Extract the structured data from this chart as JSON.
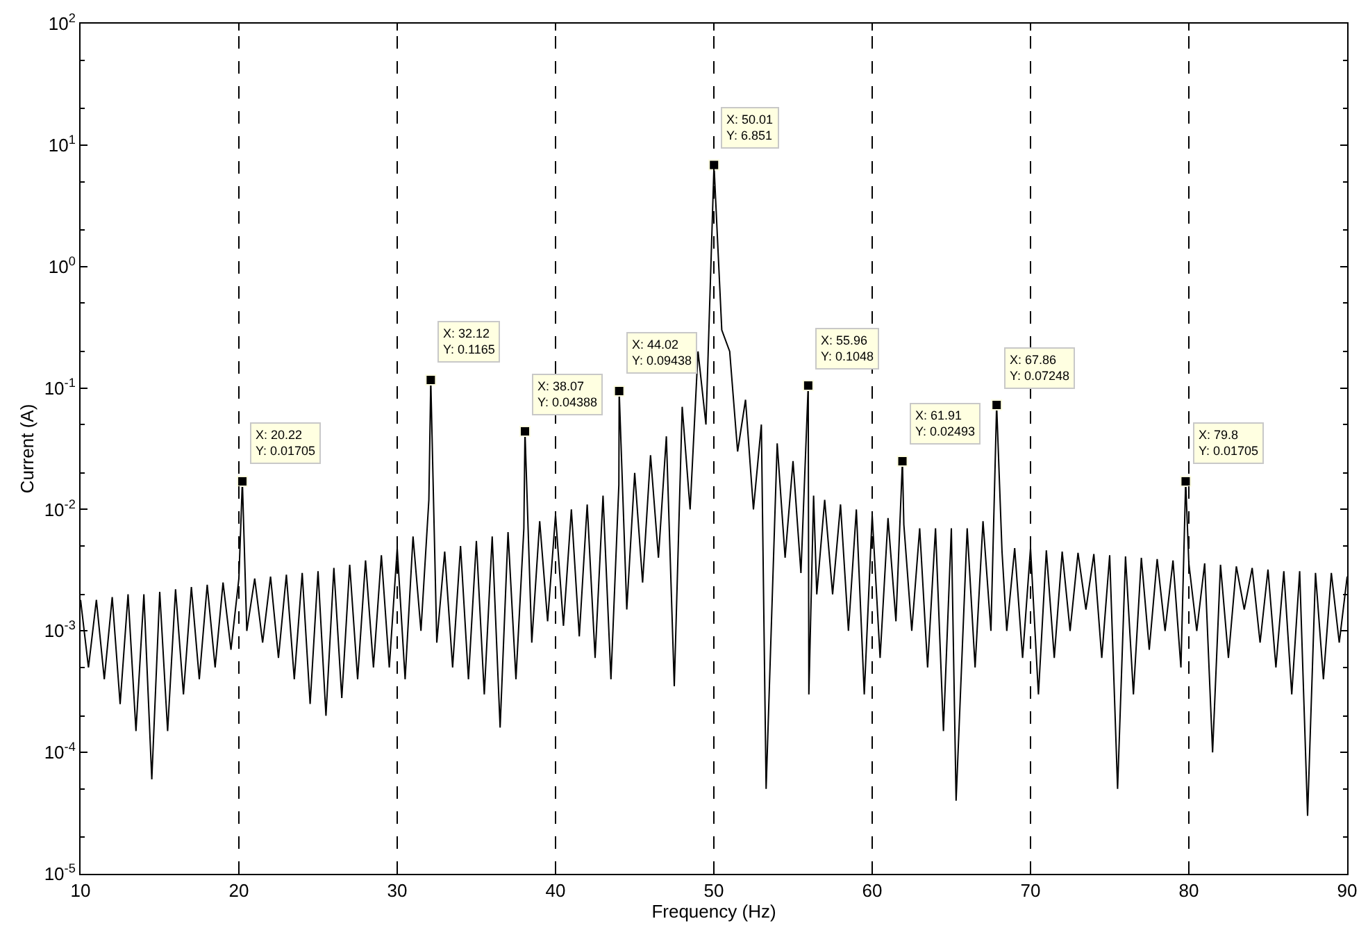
{
  "chart_data": {
    "type": "line",
    "xlabel": "Frequency (Hz)",
    "ylabel": "Current (A)",
    "xlim": [
      10,
      90
    ],
    "xticks": [
      10,
      20,
      30,
      40,
      50,
      60,
      70,
      80,
      90
    ],
    "ylim": [
      1e-05,
      100
    ],
    "log": "y",
    "yticks": [
      {
        "value": 1e-05,
        "label": "10$^{-5}$"
      },
      {
        "value": 0.0001,
        "label": "10$^{-4}$"
      },
      {
        "value": 0.001,
        "label": "10$^{-3}$"
      },
      {
        "value": 0.01,
        "label": "10$^{-2}$"
      },
      {
        "value": 0.1,
        "label": "10$^{-1}$"
      },
      {
        "value": 1,
        "label": "10$^{0}$"
      },
      {
        "value": 10,
        "label": "10$^{1}$"
      },
      {
        "value": 100,
        "label": "10$^{2}$"
      }
    ],
    "marker": "none",
    "line_style": "solid",
    "series": [
      {
        "color": "#000000",
        "x": [
          10,
          10.5,
          11,
          11.5,
          12,
          12.5,
          13,
          13.5,
          14,
          14.5,
          15,
          15.5,
          16,
          16.5,
          17,
          17.5,
          18,
          18.5,
          19,
          19.5,
          20,
          20.22,
          20.5,
          21,
          21.5,
          22,
          22.5,
          23,
          23.5,
          24,
          24.5,
          25,
          25.5,
          26,
          26.5,
          27,
          27.5,
          28,
          28.5,
          29,
          29.5,
          30,
          30.5,
          31,
          31.5,
          32,
          32.12,
          32.5,
          33,
          33.5,
          34,
          34.5,
          35,
          35.5,
          36,
          36.5,
          37,
          37.5,
          38,
          38.07,
          38.5,
          39,
          39.5,
          40,
          40.5,
          41,
          41.5,
          42,
          42.5,
          43,
          43.5,
          44,
          44.02,
          44.5,
          45,
          45.5,
          46,
          46.5,
          47,
          47.5,
          48,
          48.5,
          49,
          49.5,
          50.01,
          50.5,
          51,
          51.5,
          52,
          52.5,
          53,
          53.3,
          54,
          54.5,
          55,
          55.5,
          55.96,
          56,
          56.3,
          56.5,
          57,
          57.5,
          58,
          58.5,
          59,
          59.5,
          60,
          60.5,
          61,
          61.5,
          61.91,
          62,
          62.5,
          63,
          63.5,
          64,
          64.5,
          65,
          65.3,
          66,
          66.5,
          67,
          67.5,
          67.86,
          68.2,
          68.5,
          69,
          69.5,
          70,
          70.5,
          71,
          71.5,
          72,
          72.5,
          73,
          73.5,
          74,
          74.5,
          75,
          75.5,
          76,
          76.5,
          77,
          77.5,
          78,
          78.5,
          79,
          79.5,
          79.8,
          80,
          80.5,
          81,
          81.5,
          82,
          82.5,
          83,
          83.5,
          84,
          84.5,
          85,
          85.5,
          86,
          86.5,
          87,
          87.5,
          88,
          88.5,
          89,
          89.5,
          90
        ],
        "values": [
          0.0018,
          0.0005,
          0.0018,
          0.0004,
          0.0019,
          0.00025,
          0.002,
          0.00015,
          0.002,
          6e-05,
          0.0021,
          0.00015,
          0.0022,
          0.0003,
          0.0023,
          0.0004,
          0.0024,
          0.0005,
          0.0025,
          0.0007,
          0.0027,
          0.01705,
          0.001,
          0.0027,
          0.0008,
          0.0028,
          0.0006,
          0.0029,
          0.0004,
          0.003,
          0.00025,
          0.0031,
          0.0002,
          0.0033,
          0.00028,
          0.0035,
          0.0004,
          0.0038,
          0.0005,
          0.0042,
          0.0005,
          0.0048,
          0.0004,
          0.006,
          0.001,
          0.012,
          0.1165,
          0.0008,
          0.0045,
          0.0005,
          0.005,
          0.0004,
          0.0055,
          0.0003,
          0.006,
          0.00016,
          0.0065,
          0.0004,
          0.007,
          0.04388,
          0.0008,
          0.008,
          0.0012,
          0.009,
          0.0011,
          0.01,
          0.0009,
          0.011,
          0.0006,
          0.013,
          0.0004,
          0.016,
          0.09438,
          0.0015,
          0.02,
          0.0025,
          0.028,
          0.004,
          0.04,
          0.00035,
          0.07,
          0.01,
          0.2,
          0.05,
          6.851,
          0.3,
          0.2,
          0.03,
          0.08,
          0.01,
          0.05,
          5e-05,
          0.035,
          0.004,
          0.025,
          0.003,
          0.1048,
          0.0003,
          0.013,
          0.002,
          0.012,
          0.002,
          0.011,
          0.001,
          0.01,
          0.0003,
          0.009,
          0.0006,
          0.0085,
          0.0012,
          0.02493,
          0.0075,
          0.001,
          0.007,
          0.0005,
          0.007,
          0.00015,
          0.007,
          4e-05,
          0.007,
          0.0005,
          0.008,
          0.001,
          0.07248,
          0.0045,
          0.001,
          0.0048,
          0.0006,
          0.0048,
          0.0003,
          0.0046,
          0.0006,
          0.0045,
          0.001,
          0.0044,
          0.0015,
          0.0043,
          0.0006,
          0.0042,
          5e-05,
          0.0041,
          0.0003,
          0.004,
          0.0007,
          0.0039,
          0.001,
          0.0038,
          0.0005,
          0.01705,
          0.0036,
          0.001,
          0.0036,
          0.0001,
          0.0035,
          0.0006,
          0.0034,
          0.0015,
          0.0033,
          0.0008,
          0.0032,
          0.0005,
          0.0031,
          0.0003,
          0.0031,
          3e-05,
          0.003,
          0.0004,
          0.003,
          0.0008,
          0.0028
        ]
      }
    ],
    "ref_lines": [
      {
        "axis": "x",
        "value": 20,
        "color": "#000000",
        "line_style": "dashed"
      },
      {
        "axis": "x",
        "value": 30,
        "color": "#000000",
        "line_style": "dashed"
      },
      {
        "axis": "x",
        "value": 40,
        "color": "#000000",
        "line_style": "dashed"
      },
      {
        "axis": "x",
        "value": 50,
        "color": "#000000",
        "line_style": "dashed"
      },
      {
        "axis": "x",
        "value": 60,
        "color": "#000000",
        "line_style": "dashed"
      },
      {
        "axis": "x",
        "value": 70,
        "color": "#000000",
        "line_style": "dashed"
      },
      {
        "axis": "x",
        "value": 80,
        "color": "#000000",
        "line_style": "dashed"
      }
    ],
    "annotations": [
      {
        "text": "X: 20.22\nY: 0.01705",
        "x": 20.22,
        "y": 0.01705
      },
      {
        "text": "X: 32.12\nY: 0.1165",
        "x": 32.12,
        "y": 0.1165
      },
      {
        "text": "X: 38.07\nY: 0.04388",
        "x": 38.07,
        "y": 0.04388
      },
      {
        "text": "X: 44.02\nY: 0.09438",
        "x": 44.02,
        "y": 0.09438
      },
      {
        "text": "X: 50.01\nY: 6.851",
        "x": 50.01,
        "y": 6.851
      },
      {
        "text": "X: 55.96\nY: 0.1048",
        "x": 55.96,
        "y": 0.1048
      },
      {
        "text": "X: 61.91\nY: 0.02493",
        "x": 61.91,
        "y": 0.02493
      },
      {
        "text": "X: 67.86\nY: 0.07248",
        "x": 67.86,
        "y": 0.07248
      },
      {
        "text": "X: 79.8\nY: 0.01705",
        "x": 79.8,
        "y": 0.01705
      }
    ]
  }
}
